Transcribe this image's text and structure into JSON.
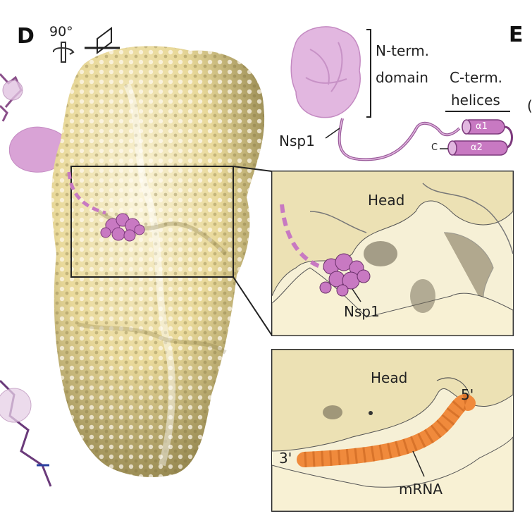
{
  "panels": {
    "d_letter": "D",
    "e_letter": "E"
  },
  "rotation": {
    "angle": "90°",
    "icon": "rotate-axis-icon",
    "plane_icon": "view-plane-icon"
  },
  "schematic": {
    "n_term": "N-term.",
    "domain": "domain",
    "c_term": "C-term.",
    "helices": "helices",
    "nsp1": "Nsp1",
    "alpha1": "α1",
    "alpha2": "α2",
    "c_label": "C",
    "paren": "("
  },
  "inset_top": {
    "head": "Head",
    "nsp1": "Nsp1"
  },
  "inset_bottom": {
    "head": "Head",
    "five_prime": "5'",
    "three_prime": "3'",
    "mrna": "mRNA"
  },
  "colors": {
    "nsp1": "#d9a3d6",
    "nsp1_dark": "#a05aa0",
    "density": "#f3e9b8",
    "density_shadow": "#b8a96a",
    "mrna": "#f08a3c",
    "inset_bg": "#f6f0d6"
  }
}
